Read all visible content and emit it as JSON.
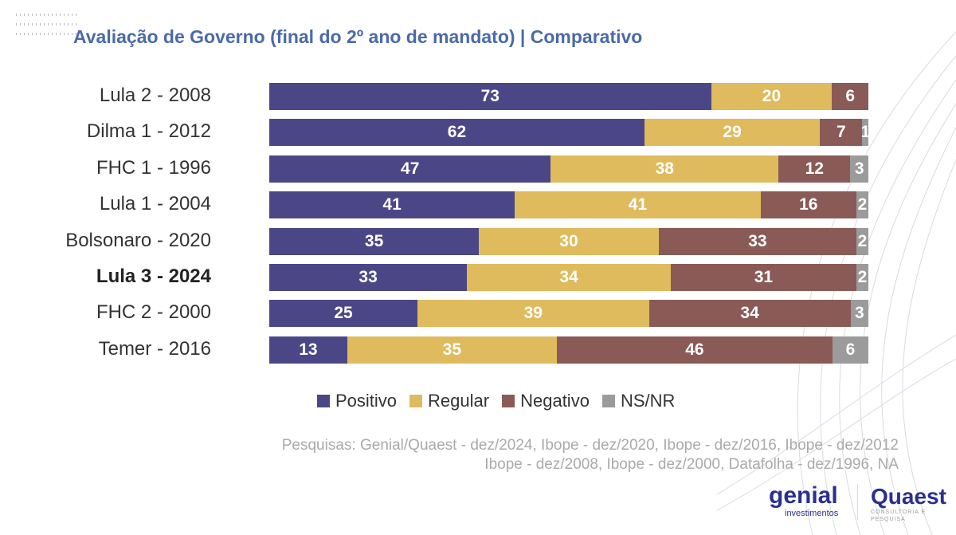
{
  "title": "Avaliação de Governo (final do 2º ano de mandato) | Comparativo",
  "chart_data": {
    "type": "bar",
    "orientation": "horizontal",
    "stacked": true,
    "percent": true,
    "title": "Avaliação de Governo (final do 2º ano de mandato) | Comparativo",
    "categories": [
      "Lula 2 - 2008",
      "Dilma 1 - 2012",
      "FHC 1 - 1996",
      "Lula 1 - 2004",
      "Bolsonaro - 2020",
      "Lula 3 - 2024",
      "FHC 2 - 2000",
      "Temer - 2016"
    ],
    "highlighted": "Lula 3 - 2024",
    "series": [
      {
        "name": "Positivo",
        "color": "#4b4787",
        "values": [
          73,
          62,
          47,
          41,
          35,
          33,
          25,
          13
        ]
      },
      {
        "name": "Regular",
        "color": "#dfbb5e",
        "values": [
          20,
          29,
          38,
          41,
          30,
          34,
          39,
          35
        ]
      },
      {
        "name": "Negativo",
        "color": "#8a5a57",
        "values": [
          6,
          7,
          12,
          16,
          33,
          31,
          34,
          46
        ]
      },
      {
        "name": "NS/NR",
        "color": "#9b9b9b",
        "values": [
          null,
          1,
          3,
          2,
          2,
          2,
          3,
          6
        ]
      }
    ],
    "legend_position": "bottom"
  },
  "source": [
    "Pesquisas: Genial/Quaest - dez/2024, Ibope - dez/2020, Ibope - dez/2016, Ibope - dez/2012",
    "Ibope - dez/2008, Ibope - dez/2000, Datafolha - dez/1996, NA"
  ],
  "logos": {
    "genial": "genial",
    "genial_sub": "investimentos",
    "quaest": "Quaest",
    "quaest_sub": "CONSULTORIA E PESQUISA"
  }
}
